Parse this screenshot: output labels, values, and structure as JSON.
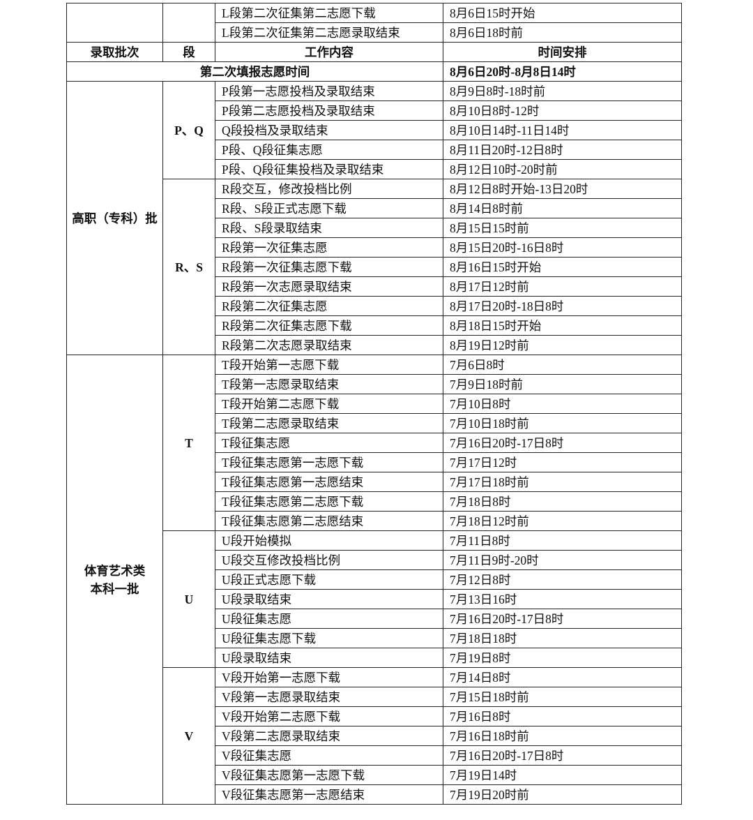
{
  "top_rows": [
    [
      "L段第二次征集第二志愿下载",
      "8月6日15时开始"
    ],
    [
      "L段第二次征集第二志愿录取结束",
      "8月6日18时前"
    ]
  ],
  "header": {
    "batch": "录取批次",
    "segment": "段",
    "work": "工作内容",
    "time": "时间安排"
  },
  "fill_row": {
    "label": "第二次填报志愿时间",
    "time": "8月6日20时-8月8日14时"
  },
  "batches": [
    {
      "name": [
        "高职（专科）批"
      ],
      "segments": [
        {
          "name": "P、Q",
          "rows": [
            [
              "P段第一志愿投档及录取结束",
              "8月9日8时-18时前"
            ],
            [
              "P段第二志愿投档及录取结束",
              "8月10日8时-12时"
            ],
            [
              "Q段投档及录取结束",
              "8月10日14时-11日14时"
            ],
            [
              "P段、Q段征集志愿",
              "8月11日20时-12日8时"
            ],
            [
              "P段、Q段征集投档及录取结束",
              "8月12日10时-20时前"
            ]
          ]
        },
        {
          "name": "R、S",
          "rows": [
            [
              "R段交互，修改投档比例",
              "8月12日8时开始-13日20时"
            ],
            [
              "R段、S段正式志愿下载",
              "8月14日8时前"
            ],
            [
              "R段、S段录取结束",
              "8月15日15时前"
            ],
            [
              "R段第一次征集志愿",
              "8月15日20时-16日8时"
            ],
            [
              "R段第一次征集志愿下载",
              "8月16日15时开始"
            ],
            [
              "R段第一次志愿录取结束",
              "8月17日12时前"
            ],
            [
              "R段第二次征集志愿",
              "8月17日20时-18日8时"
            ],
            [
              "R段第二次征集志愿下载",
              "8月18日15时开始"
            ],
            [
              "R段第二次志愿录取结束",
              "8月19日12时前"
            ]
          ]
        }
      ]
    },
    {
      "name": [
        "体育艺术类",
        "本科一批"
      ],
      "segments": [
        {
          "name": "T",
          "rows": [
            [
              "T段开始第一志愿下载",
              "7月6日8时"
            ],
            [
              "T段第一志愿录取结束",
              "7月9日18时前"
            ],
            [
              "T段开始第二志愿下载",
              "7月10日8时"
            ],
            [
              "T段第二志愿录取结束",
              "7月10日18时前"
            ],
            [
              "T段征集志愿",
              "7月16日20时-17日8时"
            ],
            [
              "T段征集志愿第一志愿下载",
              "7月17日12时"
            ],
            [
              "T段征集志愿第一志愿结束",
              "7月17日18时前"
            ],
            [
              "T段征集志愿第二志愿下载",
              "7月18日8时"
            ],
            [
              "T段征集志愿第二志愿结束",
              "7月18日12时前"
            ]
          ]
        },
        {
          "name": "U",
          "rows": [
            [
              "U段开始模拟",
              "7月11日8时"
            ],
            [
              "U段交互修改投档比例",
              "7月11日9时-20时"
            ],
            [
              "U段正式志愿下载",
              "7月12日8时"
            ],
            [
              "U段录取结束",
              "7月13日16时"
            ],
            [
              "U段征集志愿",
              "7月16日20时-17日8时"
            ],
            [
              "U段征集志愿下载",
              "7月18日18时"
            ],
            [
              "U段录取结束",
              "7月19日8时"
            ]
          ]
        },
        {
          "name": "V",
          "rows": [
            [
              "V段开始第一志愿下载",
              "7月14日8时"
            ],
            [
              "V段第一志愿录取结束",
              "7月15日18时前"
            ],
            [
              "V段开始第二志愿下载",
              "7月16日8时"
            ],
            [
              "V段第二志愿录取结束",
              "7月16日18时前"
            ],
            [
              "V段征集志愿",
              "7月16日20时-17日8时"
            ],
            [
              "V段征集志愿第一志愿下载",
              "7月19日14时"
            ],
            [
              "V段征集志愿第一志愿结束",
              "7月19日20时前"
            ]
          ]
        }
      ]
    }
  ]
}
